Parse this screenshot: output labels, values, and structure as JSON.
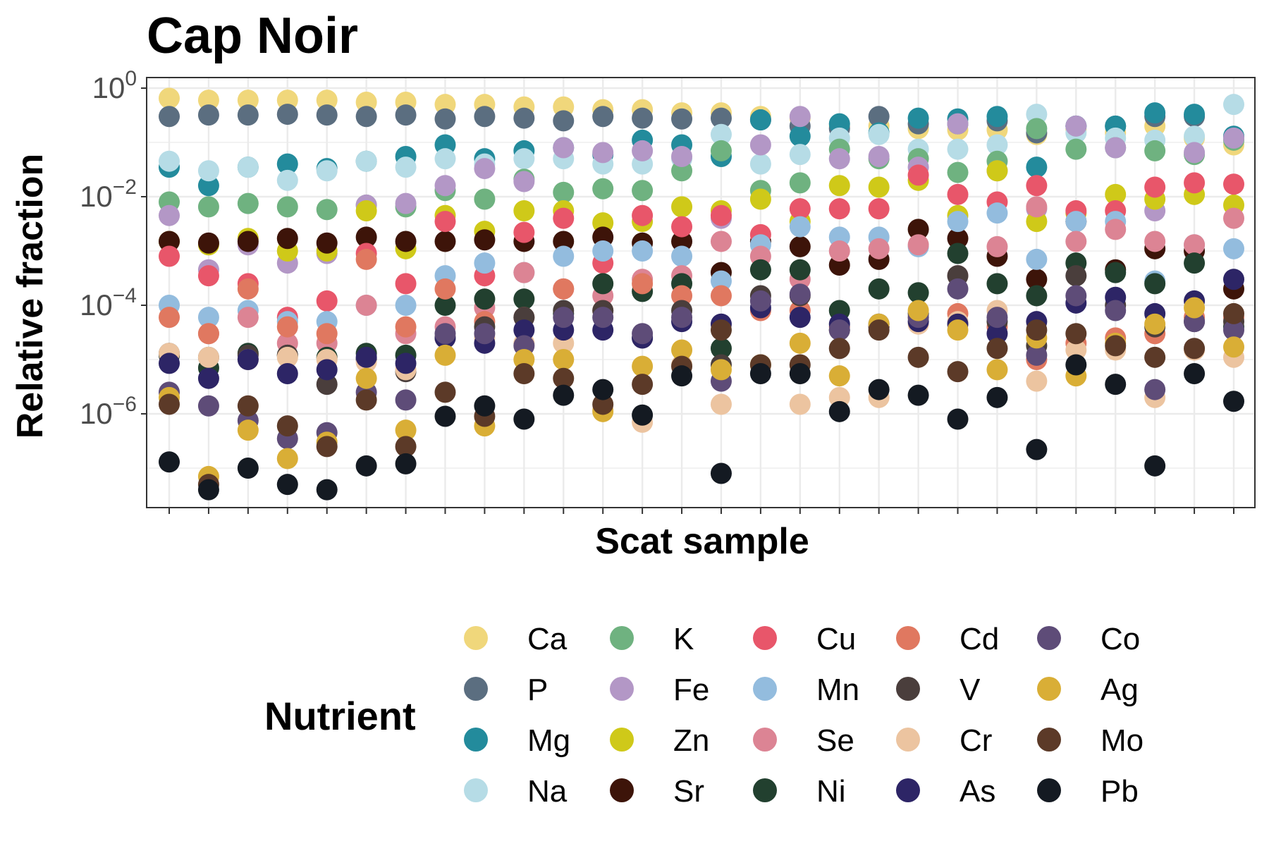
{
  "chart_data": {
    "type": "scatter",
    "title": "Cap Noir",
    "xlabel": "Scat sample",
    "ylabel": "Relative fraction",
    "yscale": "log10",
    "ylim": [
      2e-08,
      1.5
    ],
    "y_tick_exponents": [
      "0",
      "−2",
      "−4",
      "−6"
    ],
    "y_tick_base": "10",
    "grid": true,
    "legend": {
      "title": "Nutrient",
      "placement": "bottom"
    },
    "x": [
      1,
      2,
      3,
      4,
      5,
      6,
      7,
      8,
      9,
      10,
      11,
      12,
      13,
      14,
      15,
      16,
      17,
      18,
      19,
      20,
      21,
      22,
      23,
      24,
      25,
      26,
      27,
      28
    ],
    "series": [
      {
        "name": "Ca",
        "color": "#F0D77B",
        "values": [
          0.65,
          0.6,
          0.6,
          0.6,
          0.6,
          0.55,
          0.55,
          0.5,
          0.5,
          0.45,
          0.45,
          0.4,
          0.4,
          0.35,
          0.35,
          0.3,
          0.28,
          0.2,
          0.2,
          0.18,
          0.17,
          0.17,
          0.14,
          0.17,
          0.15,
          0.2,
          0.12,
          0.09
        ]
      },
      {
        "name": "P",
        "color": "#5B6E80",
        "values": [
          0.3,
          0.32,
          0.32,
          0.33,
          0.32,
          0.3,
          0.32,
          0.27,
          0.3,
          0.28,
          0.25,
          0.3,
          0.28,
          0.27,
          0.28,
          0.26,
          0.2,
          0.18,
          0.3,
          0.22,
          0.22,
          0.25,
          0.15,
          0.2,
          0.2,
          0.3,
          0.3,
          0.12
        ]
      },
      {
        "name": "Mg",
        "color": "#238B9C",
        "values": [
          0.035,
          0.016,
          0.035,
          0.04,
          0.033,
          0.045,
          0.055,
          0.09,
          0.05,
          0.07,
          0.08,
          0.06,
          0.11,
          0.09,
          0.055,
          0.26,
          0.13,
          0.22,
          0.15,
          0.28,
          0.27,
          0.3,
          0.035,
          0.2,
          0.2,
          0.35,
          0.33,
          0.13
        ]
      },
      {
        "name": "Na",
        "color": "#B6DCE6",
        "values": [
          0.045,
          0.03,
          0.035,
          0.02,
          0.03,
          0.045,
          0.035,
          0.05,
          0.04,
          0.05,
          0.05,
          0.04,
          0.04,
          0.05,
          0.14,
          0.04,
          0.06,
          0.12,
          0.14,
          0.075,
          0.075,
          0.09,
          0.33,
          0.15,
          0.12,
          0.11,
          0.13,
          0.5
        ]
      },
      {
        "name": "K",
        "color": "#6FB280",
        "values": [
          0.008,
          0.0065,
          0.0075,
          0.0065,
          0.0058,
          0.007,
          0.0065,
          0.013,
          0.009,
          0.021,
          0.012,
          0.014,
          0.013,
          0.03,
          0.07,
          0.013,
          0.018,
          0.075,
          0.05,
          0.05,
          0.028,
          0.045,
          0.18,
          0.075,
          0.08,
          0.07,
          0.06,
          0.11
        ]
      },
      {
        "name": "Fe",
        "color": "#B397C6",
        "values": [
          0.0045,
          0.00045,
          0.0013,
          0.0006,
          0.0009,
          0.007,
          0.0075,
          0.016,
          0.033,
          0.019,
          0.08,
          0.065,
          0.07,
          0.055,
          0.004,
          0.09,
          0.3,
          0.05,
          0.055,
          0.035,
          0.22,
          0.03,
          0.006,
          0.2,
          0.08,
          0.0055,
          0.065,
          0.12
        ]
      },
      {
        "name": "Zn",
        "color": "#CFC919",
        "values": [
          0.0015,
          0.0013,
          0.0017,
          0.001,
          0.001,
          0.0055,
          0.0011,
          0.0045,
          0.0023,
          0.0055,
          0.0055,
          0.0033,
          0.0035,
          0.0065,
          0.0055,
          0.009,
          0.0035,
          0.016,
          0.015,
          0.02,
          0.0045,
          0.03,
          0.0035,
          0.005,
          0.011,
          0.009,
          0.011,
          0.007
        ]
      },
      {
        "name": "Sr",
        "color": "#3D1409",
        "values": [
          0.0015,
          0.0014,
          0.0015,
          0.0017,
          0.0014,
          0.0018,
          0.0015,
          0.0015,
          0.0016,
          0.0015,
          0.0015,
          0.0018,
          0.0014,
          0.0015,
          0.0004,
          0.0015,
          0.0012,
          0.00055,
          0.0007,
          0.0025,
          0.0017,
          0.0008,
          0.0003,
          0.0035,
          0.00045,
          0.0011,
          0.001,
          0.0002
        ]
      },
      {
        "name": "Cu",
        "color": "#E8566A",
        "values": [
          0.0008,
          0.00035,
          0.00025,
          6e-05,
          0.00012,
          0.0009,
          0.00025,
          0.0035,
          0.00035,
          0.0022,
          0.004,
          0.0006,
          0.0045,
          0.0028,
          0.0045,
          0.002,
          0.006,
          0.006,
          0.006,
          0.025,
          0.011,
          0.008,
          0.016,
          0.0055,
          0.0055,
          0.015,
          0.018,
          0.017
        ]
      },
      {
        "name": "Mn",
        "color": "#93BCDE",
        "values": [
          0.0001,
          6e-05,
          8e-05,
          5e-05,
          5e-05,
          0.0001,
          0.0001,
          0.00035,
          0.0006,
          0.0004,
          0.0008,
          0.001,
          0.001,
          0.0008,
          0.00028,
          0.0013,
          0.0028,
          0.0018,
          0.0018,
          0.0012,
          0.0035,
          0.005,
          0.0007,
          0.0035,
          0.0035,
          0.00028,
          0.0013,
          0.0011
        ]
      },
      {
        "name": "Se",
        "color": "#DC8494",
        "values": [
          1.2e-05,
          3e-05,
          6e-05,
          2e-05,
          2e-05,
          0.0001,
          3e-05,
          4e-05,
          9e-05,
          0.0004,
          0.0002,
          0.00015,
          0.0003,
          0.00035,
          0.0015,
          0.0008,
          0.0003,
          0.001,
          0.0011,
          0.0013,
          0.00035,
          0.0012,
          0.0065,
          0.0015,
          0.0025,
          0.0015,
          0.0013,
          0.004
        ]
      },
      {
        "name": "Ni",
        "color": "#22402F",
        "values": [
          1.2e-05,
          7e-06,
          1.3e-05,
          1.2e-05,
          1.1e-05,
          1.3e-05,
          1.2e-05,
          0.0001,
          0.00013,
          0.00013,
          7e-05,
          0.00025,
          0.00018,
          0.00025,
          1.6e-05,
          0.00045,
          0.00045,
          8e-05,
          0.0002,
          0.00017,
          0.0009,
          0.00025,
          0.00015,
          0.0006,
          0.0004,
          0.00025,
          0.0006,
          4e-05
        ]
      },
      {
        "name": "Cd",
        "color": "#E07860",
        "values": [
          6e-05,
          3e-05,
          0.0002,
          4e-05,
          3e-05,
          0.0007,
          4e-05,
          0.0002,
          5e-05,
          6e-05,
          0.0002,
          8e-05,
          0.00025,
          0.00015,
          0.00015,
          8e-05,
          8e-05,
          4e-05,
          4e-05,
          6e-05,
          7e-05,
          4e-05,
          1e-05,
          2e-05,
          2.5e-05,
          3e-05,
          6e-05,
          6e-05
        ]
      },
      {
        "name": "V",
        "color": "#4A3E3C",
        "values": [
          1.3e-05,
          1.1e-05,
          1.2e-05,
          1.2e-05,
          3.5e-06,
          1e-05,
          6e-06,
          2.5e-05,
          4e-05,
          6e-05,
          8e-05,
          8e-05,
          2.5e-05,
          8e-05,
          8e-06,
          0.00015,
          0.00015,
          3.5e-05,
          4e-05,
          7e-05,
          0.00035,
          5e-05,
          1.8e-05,
          0.00035,
          0.0001,
          4e-05,
          5e-05,
          5e-05
        ]
      },
      {
        "name": "Cr",
        "color": "#ECC4A0",
        "values": [
          1.3e-05,
          1.1e-05,
          1e-05,
          1.1e-05,
          1e-05,
          9e-06,
          6.5e-06,
          2.5e-05,
          2.5e-05,
          2e-05,
          2e-05,
          1.2e-06,
          7e-07,
          8e-06,
          1.5e-06,
          8e-06,
          1.5e-06,
          2e-06,
          2e-06,
          4.5e-05,
          5e-05,
          8e-05,
          4e-06,
          1.5e-05,
          1.5e-05,
          2e-06,
          1.5e-05,
          1.1e-05
        ]
      },
      {
        "name": "As",
        "color": "#2D2566",
        "values": [
          8.5e-06,
          4.5e-06,
          1e-05,
          5.5e-06,
          6.5e-06,
          1.1e-05,
          8.5e-06,
          2.5e-05,
          2e-05,
          3.5e-05,
          3.5e-05,
          3.5e-05,
          2.5e-05,
          5e-05,
          4.5e-05,
          9e-05,
          6e-05,
          4.5e-05,
          4.5e-05,
          5e-05,
          4.5e-05,
          3e-05,
          5e-05,
          0.00011,
          0.00014,
          7e-05,
          0.00012,
          0.0003
        ]
      },
      {
        "name": "Co",
        "color": "#5E4C78",
        "values": [
          2.5e-06,
          1.4e-06,
          7.5e-07,
          3.5e-07,
          4.5e-07,
          2.5e-06,
          1.8e-06,
          3e-05,
          3e-05,
          1.8e-05,
          6e-05,
          6e-05,
          3e-05,
          6e-05,
          4e-06,
          0.00012,
          0.00016,
          3.5e-05,
          4e-05,
          6e-05,
          0.0002,
          6e-05,
          1.2e-05,
          0.00015,
          8e-05,
          2.8e-06,
          5e-05,
          3.5e-05
        ]
      },
      {
        "name": "Ag",
        "color": "#D9AE36",
        "values": [
          2e-06,
          7e-08,
          5e-07,
          1.5e-07,
          3e-07,
          4.5e-06,
          5e-07,
          1.2e-05,
          6e-07,
          1e-05,
          1e-05,
          1.1e-06,
          7.5e-06,
          1.5e-05,
          6.5e-06,
          8e-06,
          2e-05,
          5e-06,
          4.5e-05,
          8e-05,
          3.5e-05,
          6.5e-06,
          2.5e-05,
          5e-06,
          2e-05,
          4.5e-05,
          9e-05,
          1.7e-05
        ]
      },
      {
        "name": "Mo",
        "color": "#5C3A28",
        "values": [
          1.5e-06,
          5e-08,
          1.4e-06,
          6e-07,
          2.5e-07,
          1.8e-06,
          2.5e-07,
          2.5e-06,
          9e-07,
          5.5e-06,
          4.5e-06,
          1.5e-06,
          3.5e-06,
          7.5e-06,
          3.5e-05,
          8e-06,
          8e-06,
          1.6e-05,
          3.5e-05,
          1.1e-05,
          6e-06,
          1.6e-05,
          3.5e-05,
          3e-05,
          1.8e-05,
          1.1e-05,
          1.6e-05,
          7e-05
        ]
      },
      {
        "name": "Pb",
        "color": "#141A22",
        "values": [
          1.3e-07,
          4e-08,
          1e-07,
          5e-08,
          4e-08,
          1.1e-07,
          1.2e-07,
          9e-07,
          1.4e-06,
          8e-07,
          2.2e-06,
          2.8e-06,
          9.5e-07,
          5e-06,
          8e-08,
          5.5e-06,
          5.5e-06,
          1.1e-06,
          2.8e-06,
          2.2e-06,
          8e-07,
          2e-06,
          2.2e-07,
          8e-06,
          3.5e-06,
          1.1e-07,
          5.5e-06,
          1.7e-06
        ]
      }
    ]
  }
}
